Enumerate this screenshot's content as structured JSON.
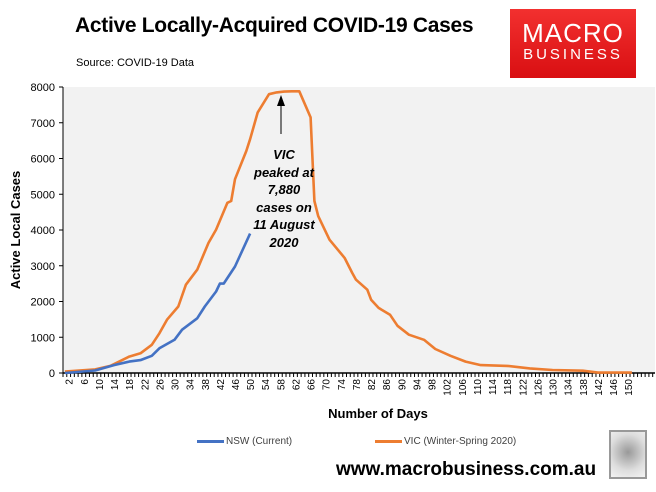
{
  "header": {
    "title": "Active Locally-Acquired COVID-19 Cases",
    "source": "Source: COVID-19 Data",
    "logo_line1": "MACRO",
    "logo_line2": "BUSINESS"
  },
  "footer": {
    "url": "www.macrobusiness.com.au"
  },
  "chart_data": {
    "type": "line",
    "title": "Active Locally-Acquired COVID-19 Cases",
    "xlabel": "Number of Days",
    "ylabel": "Active Local Cases",
    "ylim": [
      0,
      8000
    ],
    "xlim": [
      1,
      157
    ],
    "yticks": [
      0,
      1000,
      2000,
      3000,
      4000,
      5000,
      6000,
      7000,
      8000
    ],
    "xtick_labels": [
      2,
      6,
      10,
      14,
      18,
      22,
      26,
      30,
      34,
      38,
      42,
      46,
      50,
      54,
      58,
      62,
      66,
      70,
      74,
      78,
      82,
      86,
      90,
      94,
      98,
      102,
      106,
      110,
      114,
      118,
      122,
      126,
      130,
      134,
      138,
      142,
      146,
      150
    ],
    "grid": false,
    "legend_position": "bottom",
    "background": "#f2f2f2",
    "annotation": {
      "text": "VIC\npeaked at\n7,880\ncases on\n11 August\n2020",
      "arrow_points_to_day": 59,
      "arrow_points_to_value": 7880
    },
    "series": [
      {
        "name": "NSW (Current)",
        "color": "#4472c4",
        "x": [
          1,
          9,
          14,
          18,
          21,
          24,
          26,
          30,
          32,
          36,
          38,
          41,
          42,
          43,
          46,
          50
        ],
        "y": [
          0,
          70,
          220,
          320,
          360,
          480,
          690,
          930,
          1210,
          1530,
          1860,
          2280,
          2500,
          2500,
          2980,
          3900
        ]
      },
      {
        "name": "VIC (Winter-Spring 2020)",
        "color": "#ed7d31",
        "x": [
          1,
          9,
          13,
          18,
          21,
          24,
          26,
          28,
          31,
          33,
          36,
          39,
          41,
          44,
          45,
          46,
          49,
          50,
          52,
          55,
          57,
          59,
          61,
          63,
          66,
          67,
          68,
          71,
          75,
          77,
          78,
          81,
          82,
          84,
          87,
          89,
          92,
          96,
          99,
          103,
          107,
          111,
          118,
          124,
          130,
          138,
          142,
          151
        ],
        "y": [
          40,
          100,
          200,
          460,
          550,
          790,
          1110,
          1490,
          1860,
          2470,
          2890,
          3640,
          4010,
          4760,
          4810,
          5420,
          6210,
          6540,
          7290,
          7800,
          7850,
          7870,
          7880,
          7880,
          7150,
          4810,
          4390,
          3730,
          3220,
          2800,
          2610,
          2330,
          2050,
          1820,
          1630,
          1320,
          1070,
          930,
          670,
          480,
          320,
          220,
          200,
          130,
          85,
          65,
          10,
          10
        ]
      }
    ]
  }
}
